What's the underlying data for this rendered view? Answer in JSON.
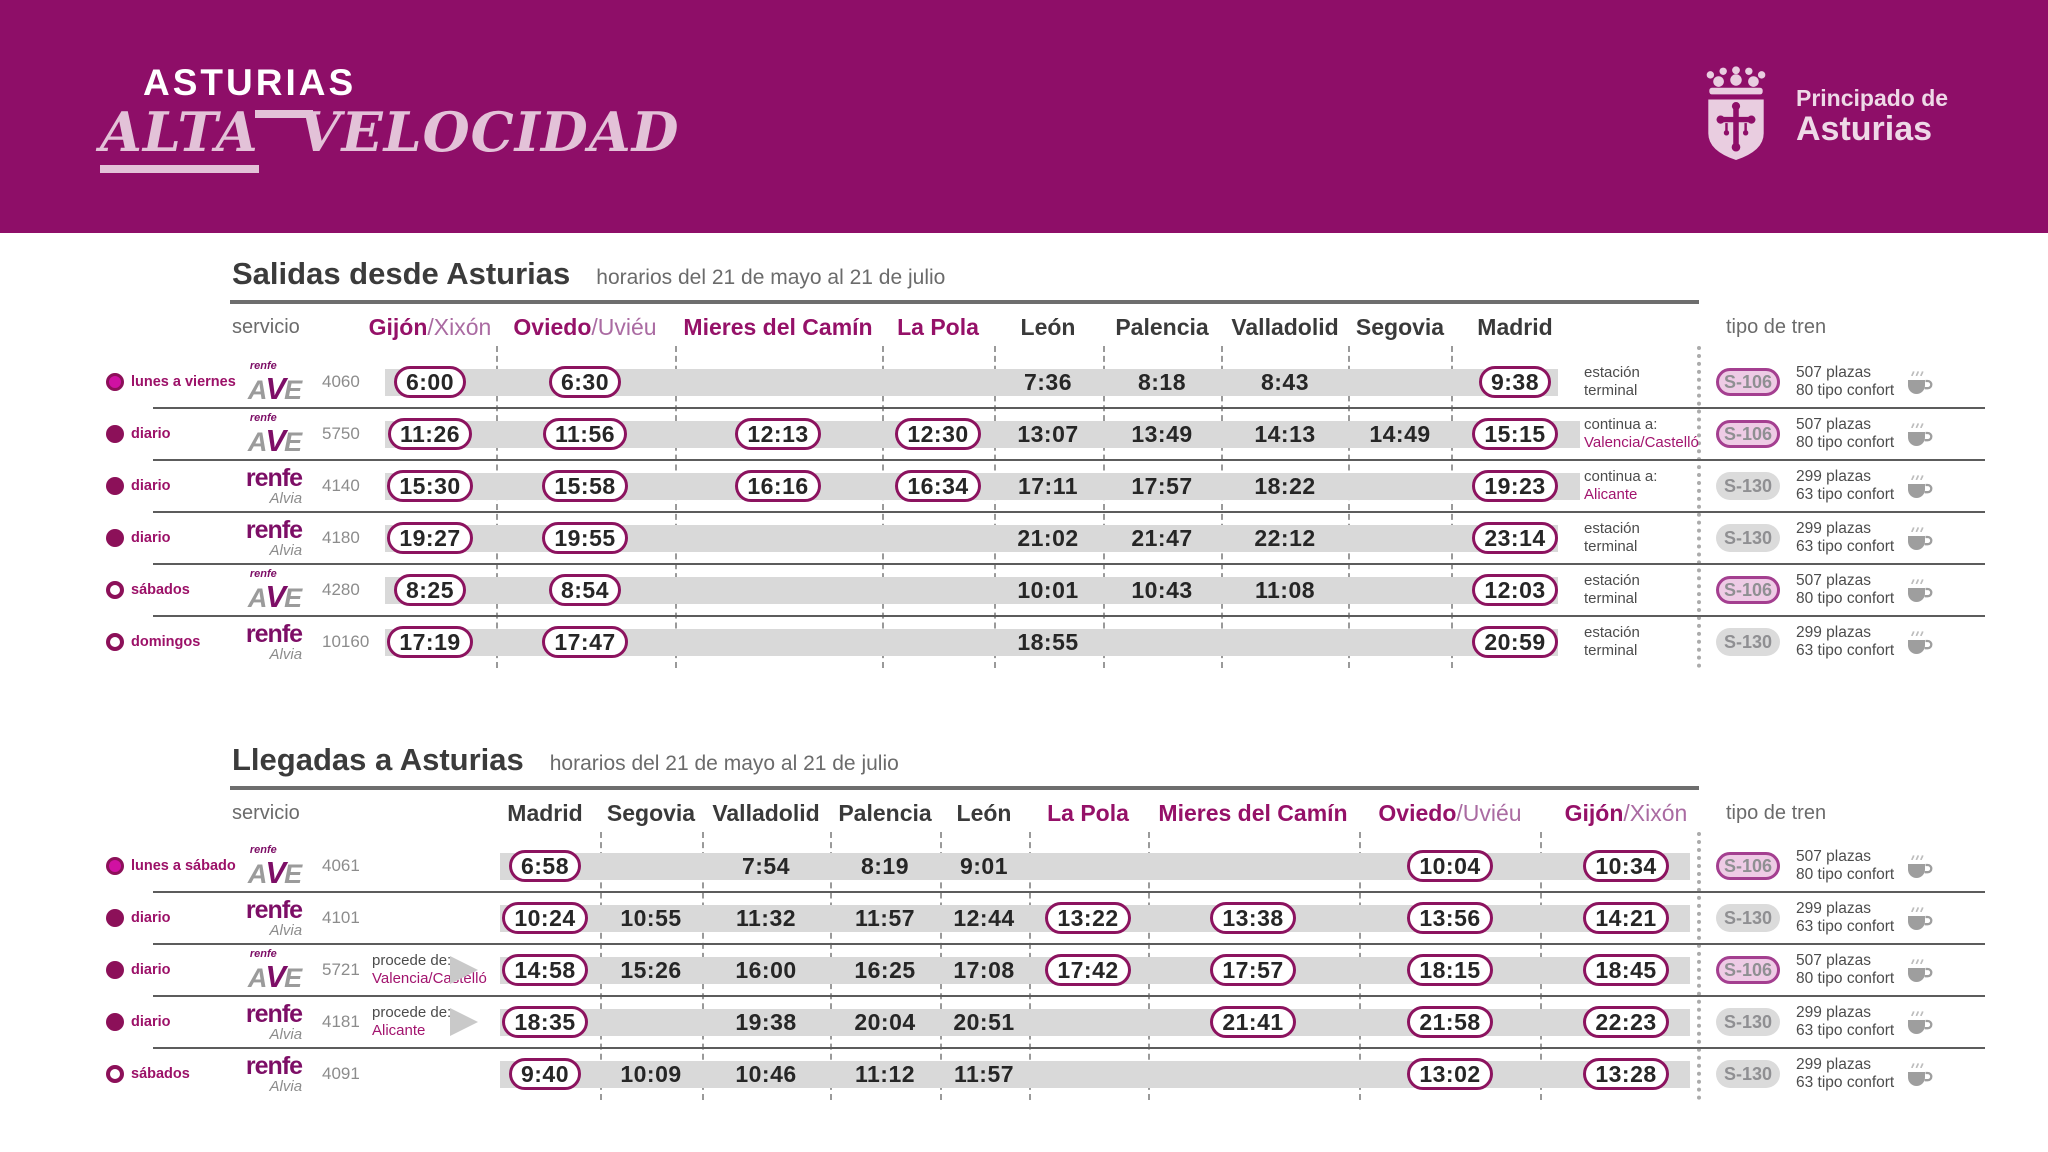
{
  "theme": {
    "masthead_purple": "#8e0e68",
    "magenta": "#951168",
    "bright_magenta": "#d011a2",
    "bubble_border": "#8c135f",
    "band_gray": "#d9d9d9",
    "s106_bg": "#eecbe5",
    "s106_border": "#a43f90",
    "s130_bg": "#dbdbdb"
  },
  "header": {
    "brand_line1": "ASTURIAS",
    "brand_line2_a": "ALTA",
    "brand_line2_b": "VELOCIDAD",
    "gov_line1": "Principado de",
    "gov_line2": "Asturias"
  },
  "departures": {
    "title": "Salidas desde Asturias",
    "subtitle": "horarios del 21 de mayo al 21 de julio",
    "servicio_label": "servicio",
    "tipo_label": "tipo de tren",
    "columns": [
      {
        "name": "Gijón",
        "sub": "/Xixón",
        "asturian": true
      },
      {
        "name": "Oviedo",
        "sub": "/Uviéu",
        "asturian": true
      },
      {
        "name": "Mieres del Camín",
        "sub": "",
        "asturian": true
      },
      {
        "name": "La Pola",
        "sub": "",
        "asturian": true
      },
      {
        "name": "León",
        "sub": "",
        "asturian": false
      },
      {
        "name": "Palencia",
        "sub": "",
        "asturian": false
      },
      {
        "name": "Valladolid",
        "sub": "",
        "asturian": false
      },
      {
        "name": "Segovia",
        "sub": "",
        "asturian": false
      },
      {
        "name": "Madrid",
        "sub": "",
        "asturian": false
      }
    ],
    "rows": [
      {
        "days": "lunes a viernes",
        "marker": "bright",
        "brand": "ave",
        "number": "4060",
        "times": [
          {
            "t": "6:00",
            "c": true
          },
          {
            "t": "6:30",
            "c": true
          },
          {
            "t": ""
          },
          {
            "t": ""
          },
          {
            "t": "7:36"
          },
          {
            "t": "8:18"
          },
          {
            "t": "8:43"
          },
          {
            "t": ""
          },
          {
            "t": "9:38",
            "c": true
          }
        ],
        "note1": "estación",
        "note2": "terminal",
        "note_hl": false,
        "train": "S-106",
        "plazas": "507 plazas",
        "confort": "80 tipo confort"
      },
      {
        "days": "diario",
        "marker": "solid",
        "brand": "ave",
        "number": "5750",
        "times": [
          {
            "t": "11:26",
            "c": true
          },
          {
            "t": "11:56",
            "c": true
          },
          {
            "t": "12:13",
            "c": true
          },
          {
            "t": "12:30",
            "c": true
          },
          {
            "t": "13:07"
          },
          {
            "t": "13:49"
          },
          {
            "t": "14:13"
          },
          {
            "t": "14:49"
          },
          {
            "t": "15:15",
            "c": true
          }
        ],
        "note1": "continua a:",
        "note2": "Valencia/Castelló",
        "note_hl": true,
        "train": "S-106",
        "plazas": "507 plazas",
        "confort": "80 tipo confort"
      },
      {
        "days": "diario",
        "marker": "solid",
        "brand": "alvia",
        "number": "4140",
        "times": [
          {
            "t": "15:30",
            "c": true
          },
          {
            "t": "15:58",
            "c": true
          },
          {
            "t": "16:16",
            "c": true
          },
          {
            "t": "16:34",
            "c": true
          },
          {
            "t": "17:11"
          },
          {
            "t": "17:57"
          },
          {
            "t": "18:22"
          },
          {
            "t": ""
          },
          {
            "t": "19:23",
            "c": true
          }
        ],
        "note1": "continua a:",
        "note2": "Alicante",
        "note_hl": true,
        "train": "S-130",
        "plazas": "299 plazas",
        "confort": "63 tipo confort"
      },
      {
        "days": "diario",
        "marker": "solid",
        "brand": "alvia",
        "number": "4180",
        "times": [
          {
            "t": "19:27",
            "c": true
          },
          {
            "t": "19:55",
            "c": true
          },
          {
            "t": ""
          },
          {
            "t": ""
          },
          {
            "t": "21:02"
          },
          {
            "t": "21:47"
          },
          {
            "t": "22:12"
          },
          {
            "t": ""
          },
          {
            "t": "23:14",
            "c": true
          }
        ],
        "note1": "estación",
        "note2": "terminal",
        "note_hl": false,
        "train": "S-130",
        "plazas": "299 plazas",
        "confort": "63 tipo confort"
      },
      {
        "days": "sábados",
        "marker": "hollow",
        "brand": "ave",
        "number": "4280",
        "times": [
          {
            "t": "8:25",
            "c": true
          },
          {
            "t": "8:54",
            "c": true
          },
          {
            "t": ""
          },
          {
            "t": ""
          },
          {
            "t": "10:01"
          },
          {
            "t": "10:43"
          },
          {
            "t": "11:08"
          },
          {
            "t": ""
          },
          {
            "t": "12:03",
            "c": true
          }
        ],
        "note1": "estación",
        "note2": "terminal",
        "note_hl": false,
        "train": "S-106",
        "plazas": "507 plazas",
        "confort": "80 tipo confort"
      },
      {
        "days": "domingos",
        "marker": "hollow",
        "brand": "alvia",
        "number": "10160",
        "times": [
          {
            "t": "17:19",
            "c": true
          },
          {
            "t": "17:47",
            "c": true
          },
          {
            "t": ""
          },
          {
            "t": ""
          },
          {
            "t": "18:55"
          },
          {
            "t": ""
          },
          {
            "t": ""
          },
          {
            "t": ""
          },
          {
            "t": "20:59",
            "c": true
          }
        ],
        "note1": "estación",
        "note2": "terminal",
        "note_hl": false,
        "train": "S-130",
        "plazas": "299 plazas",
        "confort": "63 tipo confort"
      }
    ]
  },
  "arrivals": {
    "title": "Llegadas a Asturias",
    "subtitle": "horarios del 21 de mayo al 21 de julio",
    "servicio_label": "servicio",
    "tipo_label": "tipo de tren",
    "columns": [
      {
        "name": "Madrid",
        "sub": "",
        "asturian": false
      },
      {
        "name": "Segovia",
        "sub": "",
        "asturian": false
      },
      {
        "name": "Valladolid",
        "sub": "",
        "asturian": false
      },
      {
        "name": "Palencia",
        "sub": "",
        "asturian": false
      },
      {
        "name": "León",
        "sub": "",
        "asturian": false
      },
      {
        "name": "La Pola",
        "sub": "",
        "asturian": true
      },
      {
        "name": "Mieres del Camín",
        "sub": "",
        "asturian": true
      },
      {
        "name": "Oviedo",
        "sub": "/Uviéu",
        "asturian": true
      },
      {
        "name": "Gijón",
        "sub": "/Xixón",
        "asturian": true
      }
    ],
    "rows": [
      {
        "days": "lunes a sábado",
        "marker": "bright",
        "brand": "ave",
        "number": "4061",
        "times": [
          {
            "t": "6:58",
            "c": true
          },
          {
            "t": ""
          },
          {
            "t": "7:54"
          },
          {
            "t": "8:19"
          },
          {
            "t": "9:01"
          },
          {
            "t": ""
          },
          {
            "t": ""
          },
          {
            "t": "10:04",
            "c": true
          },
          {
            "t": "10:34",
            "c": true
          }
        ],
        "train": "S-106",
        "plazas": "507 plazas",
        "confort": "80 tipo confort"
      },
      {
        "days": "diario",
        "marker": "solid",
        "brand": "alvia",
        "number": "4101",
        "times": [
          {
            "t": "10:24",
            "c": true
          },
          {
            "t": "10:55"
          },
          {
            "t": "11:32"
          },
          {
            "t": "11:57"
          },
          {
            "t": "12:44"
          },
          {
            "t": "13:22",
            "c": true
          },
          {
            "t": "13:38",
            "c": true
          },
          {
            "t": "13:56",
            "c": true
          },
          {
            "t": "14:21",
            "c": true
          }
        ],
        "train": "S-130",
        "plazas": "299 plazas",
        "confort": "63 tipo confort"
      },
      {
        "days": "diario",
        "marker": "solid",
        "brand": "ave",
        "number": "5721",
        "origin1": "procede de:",
        "origin2": "Valencia/Castelló",
        "times": [
          {
            "t": "14:58",
            "c": true
          },
          {
            "t": "15:26"
          },
          {
            "t": "16:00"
          },
          {
            "t": "16:25"
          },
          {
            "t": "17:08"
          },
          {
            "t": "17:42",
            "c": true
          },
          {
            "t": "17:57",
            "c": true
          },
          {
            "t": "18:15",
            "c": true
          },
          {
            "t": "18:45",
            "c": true
          }
        ],
        "train": "S-106",
        "plazas": "507 plazas",
        "confort": "80 tipo confort"
      },
      {
        "days": "diario",
        "marker": "solid",
        "brand": "alvia",
        "number": "4181",
        "origin1": "procede de:",
        "origin2": "Alicante",
        "times": [
          {
            "t": "18:35",
            "c": true
          },
          {
            "t": ""
          },
          {
            "t": "19:38"
          },
          {
            "t": "20:04"
          },
          {
            "t": "20:51"
          },
          {
            "t": ""
          },
          {
            "t": "21:41",
            "c": true
          },
          {
            "t": "21:58",
            "c": true
          },
          {
            "t": "22:23",
            "c": true
          }
        ],
        "train": "S-130",
        "plazas": "299 plazas",
        "confort": "63 tipo confort"
      },
      {
        "days": "sábados",
        "marker": "hollow",
        "brand": "alvia",
        "number": "4091",
        "times": [
          {
            "t": "9:40",
            "c": true
          },
          {
            "t": "10:09"
          },
          {
            "t": "10:46"
          },
          {
            "t": "11:12"
          },
          {
            "t": "11:57"
          },
          {
            "t": ""
          },
          {
            "t": ""
          },
          {
            "t": "13:02",
            "c": true
          },
          {
            "t": "13:28",
            "c": true
          }
        ],
        "train": "S-130",
        "plazas": "299 plazas",
        "confort": "63 tipo confort"
      }
    ]
  }
}
